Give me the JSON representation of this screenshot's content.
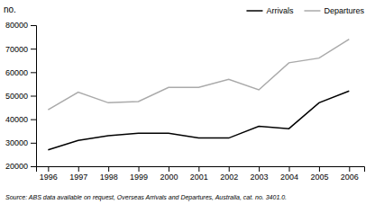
{
  "chart_data": {
    "type": "line",
    "ylabel": "no.",
    "annotations": [
      "Source: ABS data available on request, Overseas Arrivals and Departures, Australia, cat. no. 3401.0."
    ],
    "x": [
      1996,
      1997,
      1998,
      1999,
      2000,
      2001,
      2002,
      2003,
      2004,
      2005,
      2006
    ],
    "series": [
      {
        "name": "Arrivals",
        "color": "#000000",
        "values": [
          27000,
          31000,
          33000,
          34000,
          34000,
          32000,
          32000,
          37000,
          36000,
          47000,
          52000
        ]
      },
      {
        "name": "Departures",
        "color": "#aaaaaa",
        "values": [
          44000,
          51500,
          47000,
          47500,
          53500,
          53500,
          57000,
          52500,
          64000,
          66000,
          74000
        ]
      }
    ],
    "xlim": [
      1995.6,
      2006.5
    ],
    "xticks": [
      1996,
      1997,
      1998,
      1999,
      2000,
      2001,
      2002,
      2003,
      2004,
      2005,
      2006
    ],
    "ylim": [
      20000,
      80000
    ],
    "yticks": [
      20000,
      30000,
      40000,
      50000,
      60000,
      70000,
      80000
    ],
    "grid": false,
    "legend": "upper right"
  }
}
